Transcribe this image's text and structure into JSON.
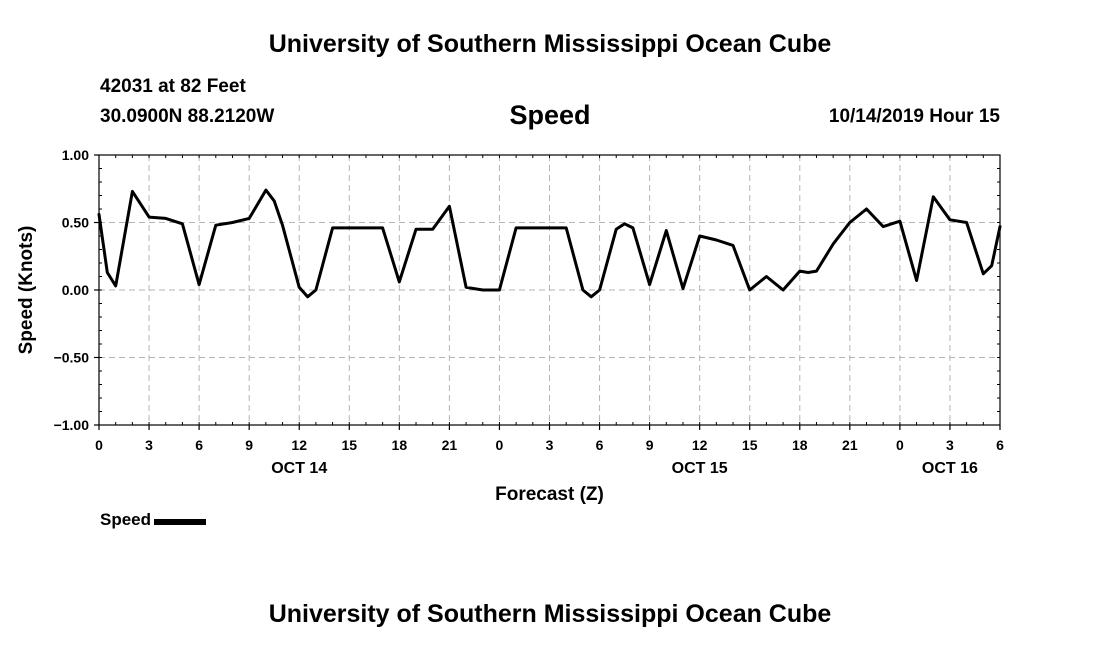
{
  "header": {
    "title": "University of Southern Mississippi Ocean Cube",
    "station": "42031 at 82 Feet",
    "coords": "30.0900N 88.2120W",
    "timestamp": "10/14/2019 Hour 15"
  },
  "footer": {
    "title": "University of Southern Mississippi Ocean Cube"
  },
  "chart_data": {
    "type": "line",
    "title": "Speed",
    "xlabel": "Forecast (Z)",
    "ylabel": "Speed (Knots)",
    "ylim": [
      -1.0,
      1.0
    ],
    "yticks": [
      -1.0,
      -0.5,
      0.0,
      0.5,
      1.0
    ],
    "ytick_labels": [
      "−1.00",
      "−0.50",
      "0.00",
      "0.50",
      "1.00"
    ],
    "xlim": [
      0,
      54
    ],
    "xticks": [
      0,
      3,
      6,
      9,
      12,
      15,
      18,
      21,
      24,
      27,
      30,
      33,
      36,
      39,
      42,
      45,
      48,
      51,
      54
    ],
    "xtick_labels": [
      "0",
      "3",
      "6",
      "9",
      "12",
      "15",
      "18",
      "21",
      "0",
      "3",
      "6",
      "9",
      "12",
      "15",
      "18",
      "21",
      "0",
      "3",
      "6"
    ],
    "date_labels": [
      {
        "x": 12,
        "label": "OCT 14"
      },
      {
        "x": 36,
        "label": "OCT 15"
      },
      {
        "x": 51,
        "label": "OCT 16"
      }
    ],
    "grid": true,
    "legend": "bottom-left",
    "color": "#000000",
    "series": [
      {
        "name": "Speed",
        "x": [
          0,
          0.5,
          1,
          2,
          3,
          4,
          5,
          6,
          7,
          8,
          9,
          10,
          10.5,
          11,
          12,
          12.5,
          13,
          14,
          15,
          16,
          17,
          18,
          19,
          20,
          21,
          22,
          23,
          24,
          25,
          26,
          27,
          28,
          29,
          29.5,
          30,
          31,
          31.5,
          32,
          33,
          34,
          35,
          36,
          37,
          38,
          39,
          40,
          41,
          42,
          42.5,
          43,
          44,
          45,
          46,
          47,
          48,
          49,
          50,
          51,
          52,
          53,
          53.5,
          54
        ],
        "values": [
          0.56,
          0.13,
          0.03,
          0.73,
          0.54,
          0.53,
          0.49,
          0.04,
          0.48,
          0.5,
          0.53,
          0.74,
          0.66,
          0.48,
          0.02,
          -0.05,
          0.0,
          0.46,
          0.46,
          0.46,
          0.46,
          0.06,
          0.45,
          0.45,
          0.62,
          0.02,
          0.0,
          0.0,
          0.46,
          0.46,
          0.46,
          0.46,
          0.0,
          -0.05,
          0.0,
          0.45,
          0.49,
          0.46,
          0.04,
          0.44,
          0.01,
          0.4,
          0.37,
          0.33,
          0.0,
          0.1,
          0.0,
          0.14,
          0.13,
          0.14,
          0.34,
          0.5,
          0.6,
          0.47,
          0.51,
          0.07,
          0.69,
          0.52,
          0.5,
          0.12,
          0.18,
          0.47
        ]
      }
    ]
  }
}
